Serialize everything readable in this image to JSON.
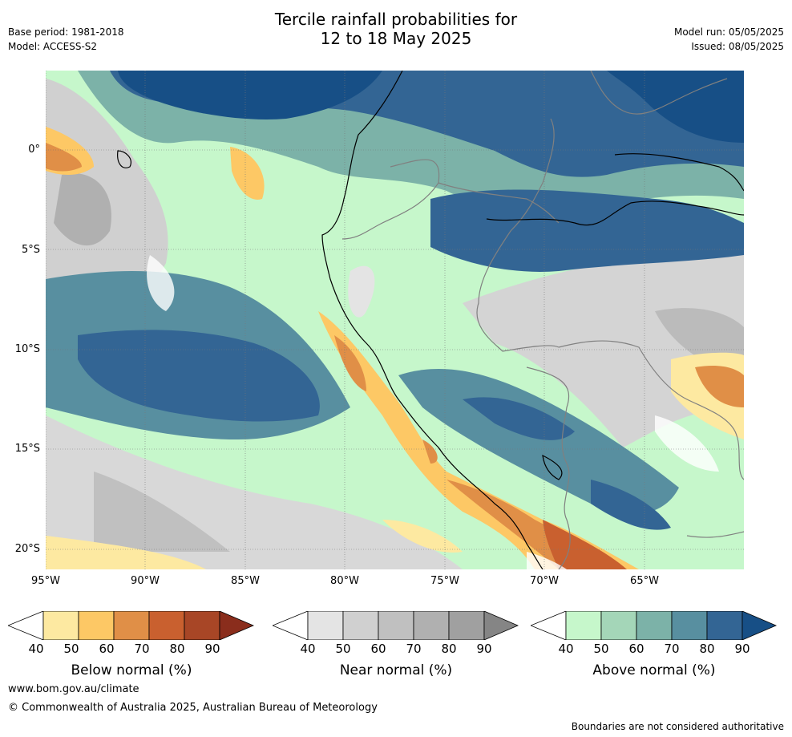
{
  "header": {
    "title_line1": "Tercile rainfall probabilities for",
    "title_line2": "12 to 18 May 2025",
    "base_period": "Base period: 1981-2018",
    "model": "Model: ACCESS-S2",
    "model_run": "Model run: 05/05/2025",
    "issued": "Issued: 08/05/2025"
  },
  "map": {
    "lat_labels": [
      "0°",
      "5°S",
      "10°S",
      "15°S",
      "20°S"
    ],
    "lon_labels": [
      "95°W",
      "90°W",
      "85°W",
      "80°W",
      "75°W",
      "70°W",
      "65°W"
    ],
    "grid": true,
    "coastline_color": "#000000",
    "border_color": "#808080"
  },
  "colorbars": [
    {
      "title": "Below normal (%)",
      "ticks": [
        "40",
        "50",
        "60",
        "70",
        "80",
        "90"
      ],
      "colors": [
        "#ffffff",
        "#fde9a1",
        "#fdc865",
        "#e08f47",
        "#c9602f",
        "#a84626",
        "#8a2d1c"
      ]
    },
    {
      "title": "Near normal (%)",
      "ticks": [
        "40",
        "50",
        "60",
        "70",
        "80",
        "90"
      ],
      "colors": [
        "#ffffff",
        "#e4e4e4",
        "#d0d0d0",
        "#c0c0c0",
        "#b0b0b0",
        "#a0a0a0",
        "#858585"
      ]
    },
    {
      "title": "Above normal (%)",
      "ticks": [
        "40",
        "50",
        "60",
        "70",
        "80",
        "90"
      ],
      "colors": [
        "#ffffff",
        "#c6f7cb",
        "#a4d6b8",
        "#7cb2a8",
        "#588fa0",
        "#336594",
        "#174f86"
      ]
    }
  ],
  "footer": {
    "website": "www.bom.gov.au/climate",
    "copyright": "© Commonwealth of Australia 2025, Australian Bureau of Meteorology",
    "disclaimer": "Boundaries are not considered authoritative"
  }
}
